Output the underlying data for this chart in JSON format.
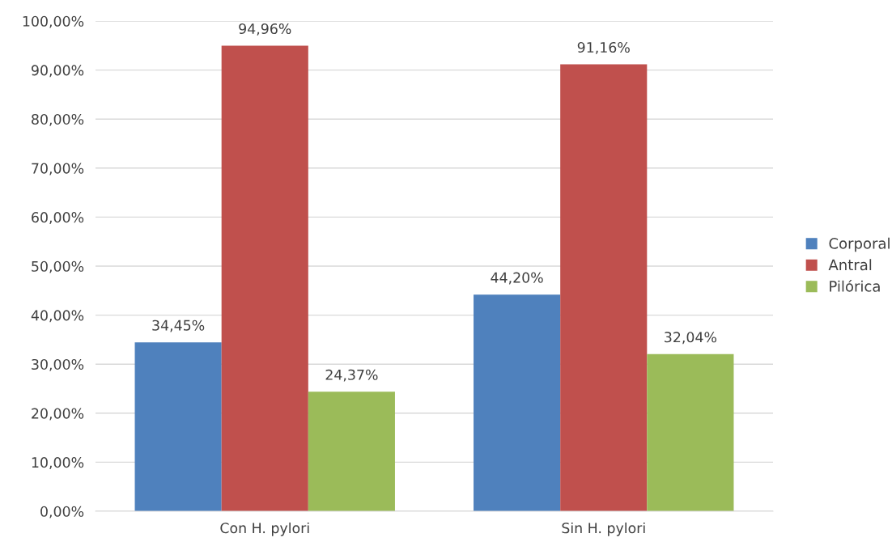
{
  "chart_data": {
    "type": "bar",
    "categories": [
      "Con H. pylori",
      "Sin H. pylori"
    ],
    "series": [
      {
        "name": "Corporal",
        "color": "#4f81bd",
        "values": [
          34.45,
          44.2
        ],
        "value_labels": [
          "34,45%",
          "44,20%"
        ]
      },
      {
        "name": "Antral",
        "color": "#c0504d",
        "values": [
          94.96,
          91.16
        ],
        "value_labels": [
          "94,96%",
          "91,16%"
        ]
      },
      {
        "name": "Pilórica",
        "color": "#9bbb59",
        "values": [
          24.37,
          32.04
        ],
        "value_labels": [
          "24,37%",
          "32,04%"
        ]
      }
    ],
    "ylim": [
      0,
      100
    ],
    "yticks": [
      {
        "value": 0,
        "label": "0,00%"
      },
      {
        "value": 10,
        "label": "10,00%"
      },
      {
        "value": 20,
        "label": "20,00%"
      },
      {
        "value": 30,
        "label": "30,00%"
      },
      {
        "value": 40,
        "label": "40,00%"
      },
      {
        "value": 50,
        "label": "50,00%"
      },
      {
        "value": 60,
        "label": "60,00%"
      },
      {
        "value": 70,
        "label": "70,00%"
      },
      {
        "value": 80,
        "label": "80,00%"
      },
      {
        "value": 90,
        "label": "90,00%"
      },
      {
        "value": 100,
        "label": "100,00%"
      }
    ],
    "grid": "y",
    "legend": "right"
  }
}
